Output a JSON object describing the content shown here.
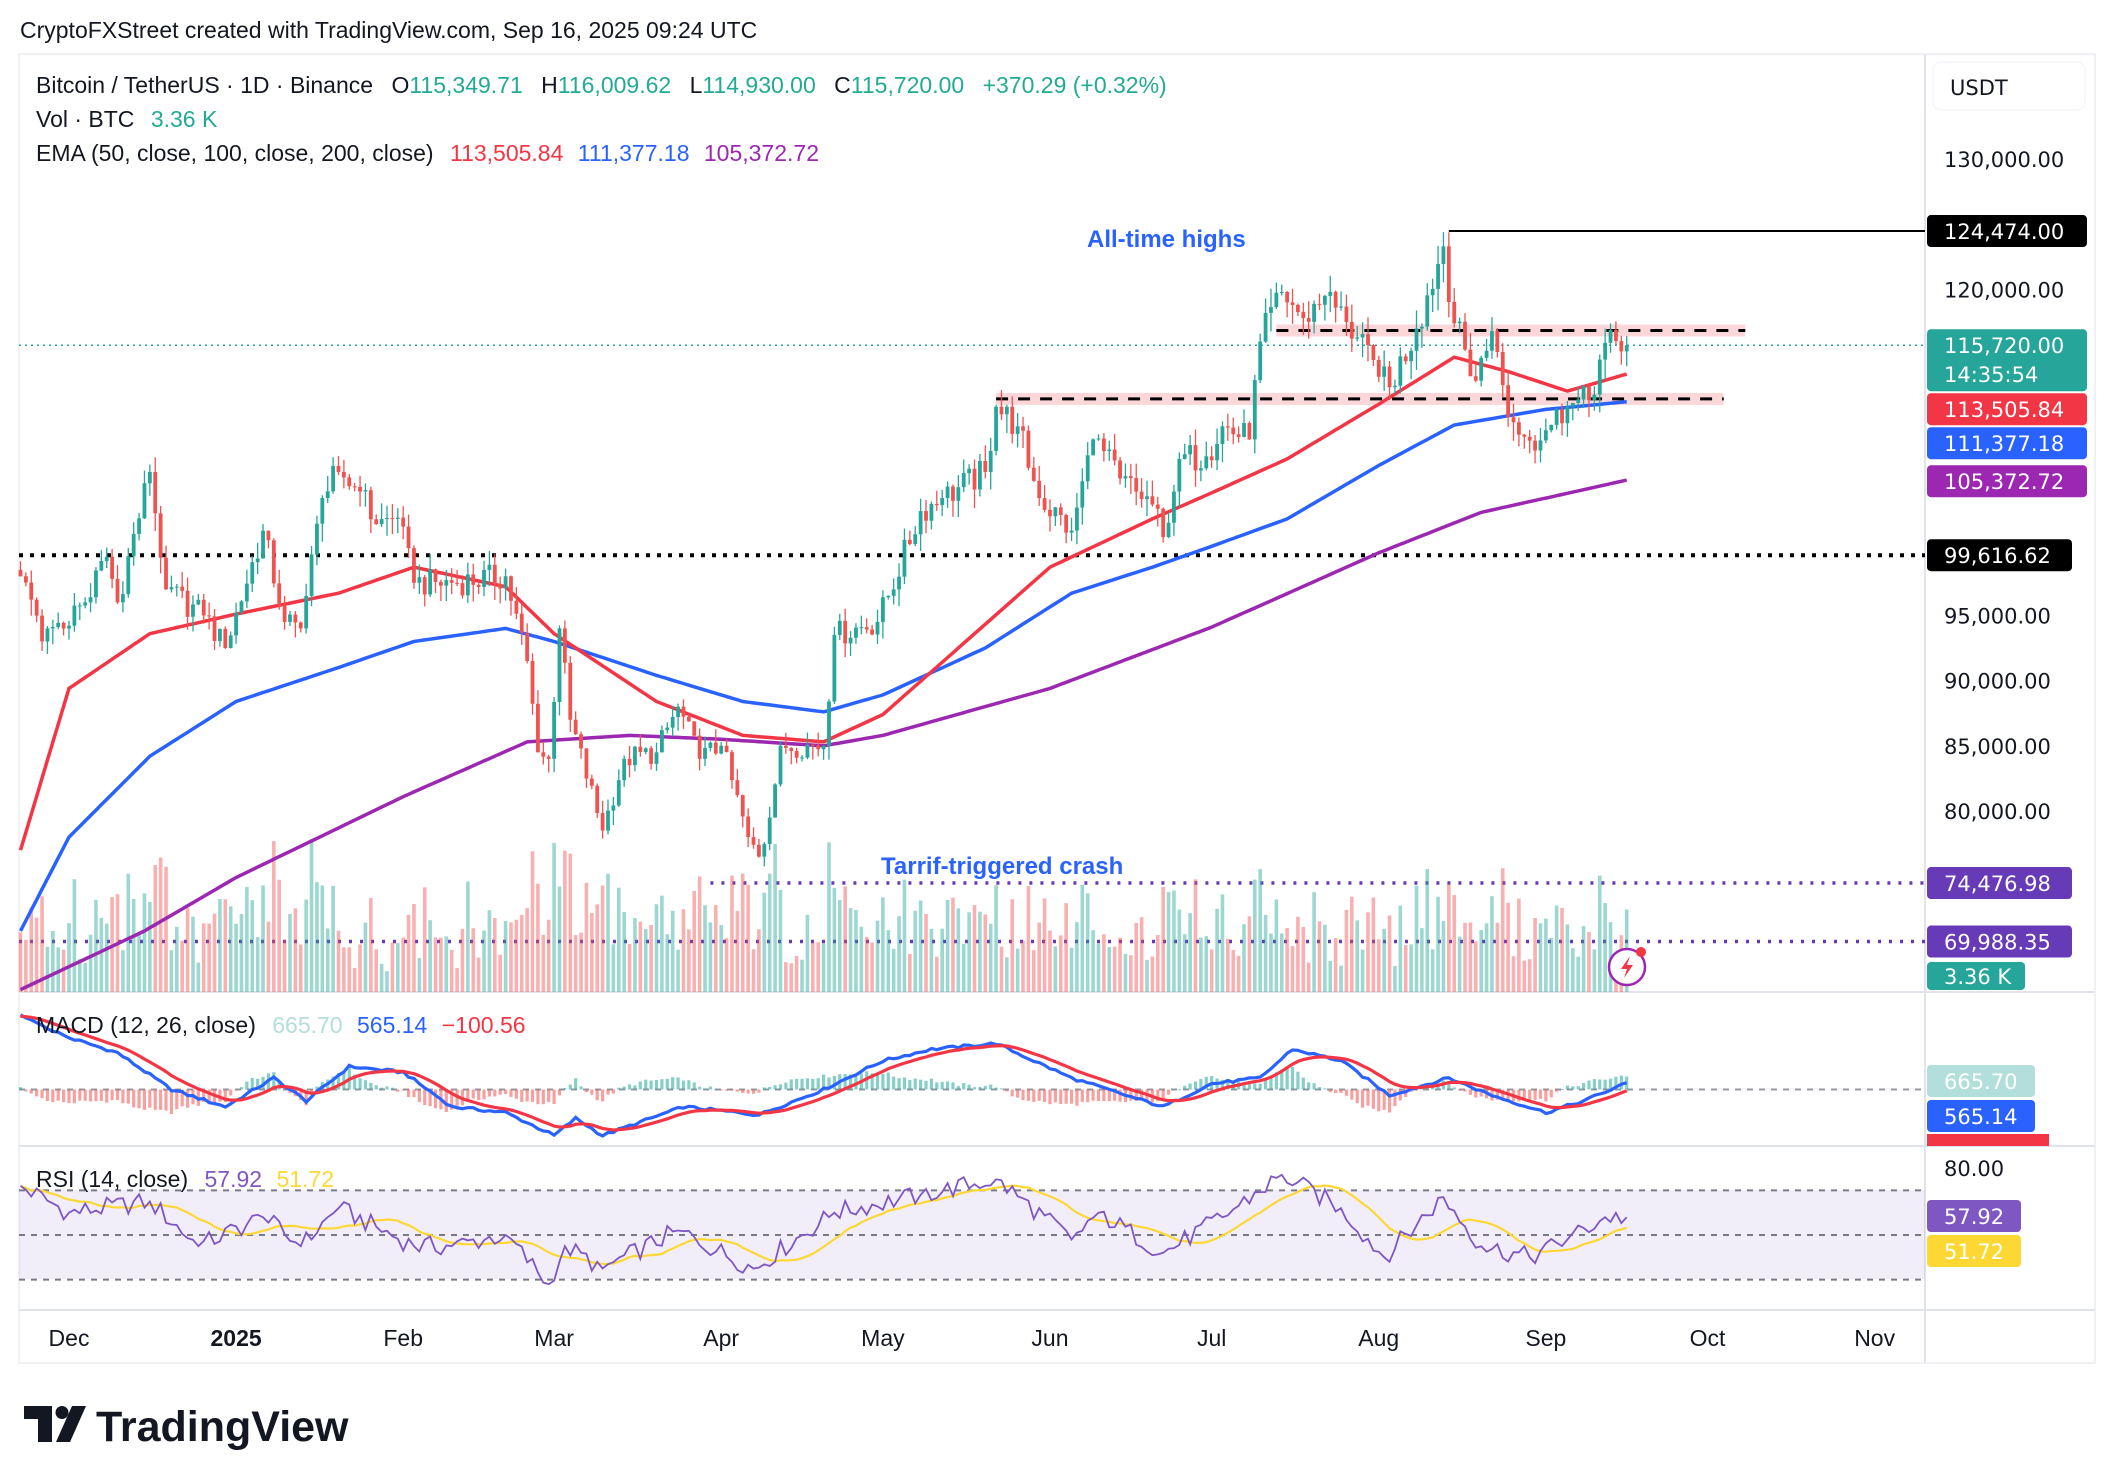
{
  "header": {
    "credit": "CryptoFXStreet created with TradingView.com, Sep 16, 2025 09:24 UTC"
  },
  "legend": {
    "symbol": "Bitcoin / TetherUS · 1D · Binance",
    "open_label": "O",
    "open": "115,349.71",
    "high_label": "H",
    "high": "116,009.62",
    "low_label": "L",
    "low": "114,930.00",
    "close_label": "C",
    "close": "115,720.00",
    "change": "+370.29 (+0.32%)",
    "vol_label": "Vol · BTC",
    "vol": "3.36 K",
    "ema_label": "EMA (50, close, 100, close, 200, close)",
    "ema50": "113,505.84",
    "ema100": "111,377.18",
    "ema200": "105,372.72",
    "macd_label": "MACD (12, 26, close)",
    "macd_hist": "665.70",
    "macd_line": "565.14",
    "macd_signal": "−100.56",
    "rsi_label": "RSI (14, close)",
    "rsi": "57.92",
    "rsi_ma": "51.72"
  },
  "price_axis": {
    "currency": "USDT",
    "ticks": [
      "130,000.00",
      "120,000.00",
      "95,000.00",
      "90,000.00",
      "85,000.00",
      "80,000.00"
    ],
    "tick_values": [
      130000,
      120000,
      95000,
      90000,
      85000,
      80000
    ],
    "badges": {
      "ath": "124,474.00",
      "last": "115,720.00",
      "countdown": "14:35:54",
      "ema50": "113,505.84",
      "ema100": "111,377.18",
      "ema200": "105,372.72",
      "support": "99,616.62",
      "crash_low": "74,476.98",
      "level2": "69,988.35",
      "volume": "3.36 K",
      "macd_hist": "665.70",
      "macd_line": "565.14",
      "macd_signal": "−100.56",
      "rsi_top": "80.00",
      "rsi": "57.92",
      "rsi_ma": "51.72"
    }
  },
  "time_axis": {
    "labels": [
      "Dec",
      "2025",
      "Feb",
      "Mar",
      "Apr",
      "May",
      "Jun",
      "Jul",
      "Aug",
      "Sep",
      "Oct",
      "Nov"
    ],
    "dates": [
      "2024-12-01",
      "2025-01-01",
      "2025-02-01",
      "2025-03-01",
      "2025-04-01",
      "2025-05-01",
      "2025-06-01",
      "2025-07-01",
      "2025-08-01",
      "2025-09-01",
      "2025-10-01",
      "2025-11-01"
    ]
  },
  "annotations": {
    "ath_text": "All-time highs",
    "crash_text": "Tarrif-triggered crash"
  },
  "logo": {
    "text": "TradingView"
  },
  "colors": {
    "up": "#26a69a",
    "down": "#ef5350",
    "ema50": "#f23645",
    "ema100": "#2962ff",
    "ema200": "#9c27b0",
    "annotation": "#2962ff",
    "macd_hist": "#b2dfdb",
    "macd_line": "#2962ff",
    "macd_signal": "#f23645",
    "rsi": "#7e57c2",
    "rsi_ma": "#fdd835",
    "level_purple": "#673ab7"
  },
  "chart_data": {
    "type": "candlestick",
    "symbol": "BTCUSDT",
    "interval": "1D",
    "ylim": [
      62000,
      134000
    ],
    "grid": false,
    "close_path": [
      [
        "2024-11-22",
        98000
      ],
      [
        "2024-11-26",
        93000
      ],
      [
        "2024-12-04",
        96000
      ],
      [
        "2024-12-08",
        99500
      ],
      [
        "2024-12-10",
        96000
      ],
      [
        "2024-12-16",
        106000
      ],
      [
        "2024-12-19",
        97000
      ],
      [
        "2024-12-26",
        95000
      ],
      [
        "2024-12-30",
        92500
      ],
      [
        "2025-01-06",
        101500
      ],
      [
        "2025-01-10",
        94500
      ],
      [
        "2025-01-13",
        94000
      ],
      [
        "2025-01-17",
        104000
      ],
      [
        "2025-01-20",
        106000
      ],
      [
        "2025-01-24",
        104500
      ],
      [
        "2025-01-27",
        102000
      ],
      [
        "2025-01-31",
        102500
      ],
      [
        "2025-02-03",
        97500
      ],
      [
        "2025-02-10",
        97500
      ],
      [
        "2025-02-20",
        98000
      ],
      [
        "2025-02-24",
        91500
      ],
      [
        "2025-02-26",
        84500
      ],
      [
        "2025-02-28",
        84000
      ],
      [
        "2025-03-02",
        94000
      ],
      [
        "2025-03-04",
        87000
      ],
      [
        "2025-03-10",
        78500
      ],
      [
        "2025-03-14",
        84000
      ],
      [
        "2025-03-20",
        84500
      ],
      [
        "2025-03-24",
        88000
      ],
      [
        "2025-03-28",
        84000
      ],
      [
        "2025-04-01",
        85000
      ],
      [
        "2025-04-06",
        78000
      ],
      [
        "2025-04-08",
        76500
      ],
      [
        "2025-04-10",
        79500
      ],
      [
        "2025-04-12",
        85000
      ],
      [
        "2025-04-20",
        85000
      ],
      [
        "2025-04-22",
        93500
      ],
      [
        "2025-04-30",
        94500
      ],
      [
        "2025-05-02",
        96500
      ],
      [
        "2025-05-08",
        103000
      ],
      [
        "2025-05-12",
        104000
      ],
      [
        "2025-05-20",
        106000
      ],
      [
        "2025-05-22",
        111000
      ],
      [
        "2025-05-26",
        109500
      ],
      [
        "2025-05-30",
        104000
      ],
      [
        "2025-06-05",
        101500
      ],
      [
        "2025-06-09",
        108500
      ],
      [
        "2025-06-14",
        105500
      ],
      [
        "2025-06-17",
        104500
      ],
      [
        "2025-06-20",
        103500
      ],
      [
        "2025-06-22",
        101000
      ],
      [
        "2025-06-25",
        107000
      ],
      [
        "2025-06-30",
        107200
      ],
      [
        "2025-07-03",
        109500
      ],
      [
        "2025-07-08",
        108500
      ],
      [
        "2025-07-10",
        116000
      ],
      [
        "2025-07-14",
        119800
      ],
      [
        "2025-07-18",
        117800
      ],
      [
        "2025-07-22",
        119500
      ],
      [
        "2025-07-26",
        117500
      ],
      [
        "2025-08-01",
        113300
      ],
      [
        "2025-08-03",
        112500
      ],
      [
        "2025-08-08",
        117000
      ],
      [
        "2025-08-13",
        123300
      ],
      [
        "2025-08-15",
        117400
      ],
      [
        "2025-08-19",
        113000
      ],
      [
        "2025-08-22",
        116800
      ],
      [
        "2025-08-25",
        110200
      ],
      [
        "2025-08-29",
        108400
      ],
      [
        "2025-09-01",
        109200
      ],
      [
        "2025-09-05",
        111000
      ],
      [
        "2025-09-09",
        111500
      ],
      [
        "2025-09-12",
        115900
      ],
      [
        "2025-09-16",
        115720
      ]
    ],
    "ema50": [
      [
        "2024-11-22",
        77000
      ],
      [
        "2024-12-01",
        89400
      ],
      [
        "2024-12-16",
        93600
      ],
      [
        "2025-01-01",
        95100
      ],
      [
        "2025-01-20",
        96700
      ],
      [
        "2025-02-03",
        98700
      ],
      [
        "2025-02-20",
        97200
      ],
      [
        "2025-03-01",
        93600
      ],
      [
        "2025-03-20",
        88400
      ],
      [
        "2025-04-05",
        85800
      ],
      [
        "2025-04-20",
        85300
      ],
      [
        "2025-05-01",
        87400
      ],
      [
        "2025-05-15",
        92500
      ],
      [
        "2025-06-01",
        98700
      ],
      [
        "2025-06-20",
        102400
      ],
      [
        "2025-07-01",
        104400
      ],
      [
        "2025-07-15",
        107000
      ],
      [
        "2025-08-01",
        111200
      ],
      [
        "2025-08-15",
        114800
      ],
      [
        "2025-08-25",
        113700
      ],
      [
        "2025-09-05",
        112200
      ],
      [
        "2025-09-16",
        113505.84
      ]
    ],
    "ema100": [
      [
        "2024-11-22",
        70800
      ],
      [
        "2024-12-01",
        78000
      ],
      [
        "2024-12-16",
        84200
      ],
      [
        "2025-01-01",
        88400
      ],
      [
        "2025-01-20",
        91000
      ],
      [
        "2025-02-03",
        93000
      ],
      [
        "2025-02-20",
        94000
      ],
      [
        "2025-03-01",
        93000
      ],
      [
        "2025-03-20",
        90400
      ],
      [
        "2025-04-05",
        88400
      ],
      [
        "2025-04-20",
        87600
      ],
      [
        "2025-05-01",
        88900
      ],
      [
        "2025-05-20",
        92500
      ],
      [
        "2025-06-05",
        96700
      ],
      [
        "2025-06-20",
        98700
      ],
      [
        "2025-07-01",
        100300
      ],
      [
        "2025-07-15",
        102400
      ],
      [
        "2025-08-01",
        106500
      ],
      [
        "2025-08-15",
        109600
      ],
      [
        "2025-09-01",
        110800
      ],
      [
        "2025-09-16",
        111377.18
      ]
    ],
    "ema200": [
      [
        "2024-11-22",
        66300
      ],
      [
        "2024-12-15",
        70800
      ],
      [
        "2025-01-01",
        74900
      ],
      [
        "2025-02-01",
        81100
      ],
      [
        "2025-02-24",
        85300
      ],
      [
        "2025-03-15",
        85800
      ],
      [
        "2025-04-01",
        85500
      ],
      [
        "2025-04-20",
        85000
      ],
      [
        "2025-05-01",
        85800
      ],
      [
        "2025-06-01",
        89400
      ],
      [
        "2025-07-01",
        94100
      ],
      [
        "2025-08-01",
        99800
      ],
      [
        "2025-08-20",
        102900
      ],
      [
        "2025-09-16",
        105372.72
      ]
    ],
    "levels": {
      "ath": {
        "value": 124474.0,
        "from": "2025-08-14"
      },
      "resistance_upper": {
        "value": 116850,
        "from": "2025-07-13",
        "to": "2025-10-08"
      },
      "resistance_lower": {
        "value": 111600,
        "from": "2025-05-22",
        "to": "2025-10-04"
      },
      "support": {
        "value": 99616.62
      },
      "crash_low": {
        "value": 74476.98,
        "from": "2025-03-30"
      },
      "level2": {
        "value": 69988.35
      },
      "last": {
        "value": 115720.0
      }
    },
    "macd": [
      [
        "2024-11-22",
        6400
      ],
      [
        "2024-12-01",
        4500
      ],
      [
        "2024-12-10",
        3200
      ],
      [
        "2024-12-20",
        0
      ],
      [
        "2024-12-30",
        -1500
      ],
      [
        "2025-01-08",
        1000
      ],
      [
        "2025-01-14",
        -1000
      ],
      [
        "2025-01-22",
        2000
      ],
      [
        "2025-02-01",
        1500
      ],
      [
        "2025-02-10",
        -1500
      ],
      [
        "2025-02-20",
        -2000
      ],
      [
        "2025-03-01",
        -4000
      ],
      [
        "2025-03-05",
        -2500
      ],
      [
        "2025-03-10",
        -4000
      ],
      [
        "2025-03-25",
        -1500
      ],
      [
        "2025-04-08",
        -2200
      ],
      [
        "2025-04-20",
        0
      ],
      [
        "2025-05-01",
        2500
      ],
      [
        "2025-05-10",
        3500
      ],
      [
        "2025-05-22",
        4000
      ],
      [
        "2025-06-05",
        1000
      ],
      [
        "2025-06-15",
        -500
      ],
      [
        "2025-06-22",
        -1500
      ],
      [
        "2025-07-01",
        500
      ],
      [
        "2025-07-10",
        1000
      ],
      [
        "2025-07-16",
        3500
      ],
      [
        "2025-07-25",
        2500
      ],
      [
        "2025-08-03",
        -500
      ],
      [
        "2025-08-14",
        1000
      ],
      [
        "2025-08-22",
        -500
      ],
      [
        "2025-09-01",
        -2000
      ],
      [
        "2025-09-08",
        -1000
      ],
      [
        "2025-09-16",
        565.14
      ]
    ],
    "rsi": [
      [
        "2024-11-22",
        72
      ],
      [
        "2024-12-01",
        60
      ],
      [
        "2024-12-16",
        65
      ],
      [
        "2024-12-25",
        45
      ],
      [
        "2025-01-06",
        58
      ],
      [
        "2025-01-13",
        45
      ],
      [
        "2025-01-20",
        62
      ],
      [
        "2025-02-03",
        45
      ],
      [
        "2025-02-10",
        45
      ],
      [
        "2025-02-20",
        50
      ],
      [
        "2025-02-28",
        28
      ],
      [
        "2025-03-03",
        45
      ],
      [
        "2025-03-10",
        35
      ],
      [
        "2025-03-24",
        52
      ],
      [
        "2025-04-07",
        35
      ],
      [
        "2025-04-22",
        60
      ],
      [
        "2025-05-08",
        68
      ],
      [
        "2025-05-22",
        75
      ],
      [
        "2025-06-05",
        48
      ],
      [
        "2025-06-10",
        60
      ],
      [
        "2025-06-22",
        42
      ],
      [
        "2025-07-03",
        58
      ],
      [
        "2025-07-14",
        77
      ],
      [
        "2025-07-25",
        62
      ],
      [
        "2025-08-02",
        40
      ],
      [
        "2025-08-13",
        67
      ],
      [
        "2025-08-20",
        45
      ],
      [
        "2025-08-29",
        40
      ],
      [
        "2025-09-05",
        48
      ],
      [
        "2025-09-12",
        58
      ],
      [
        "2025-09-16",
        57.92
      ]
    ],
    "rsi_levels": [
      70,
      50,
      30
    ]
  }
}
